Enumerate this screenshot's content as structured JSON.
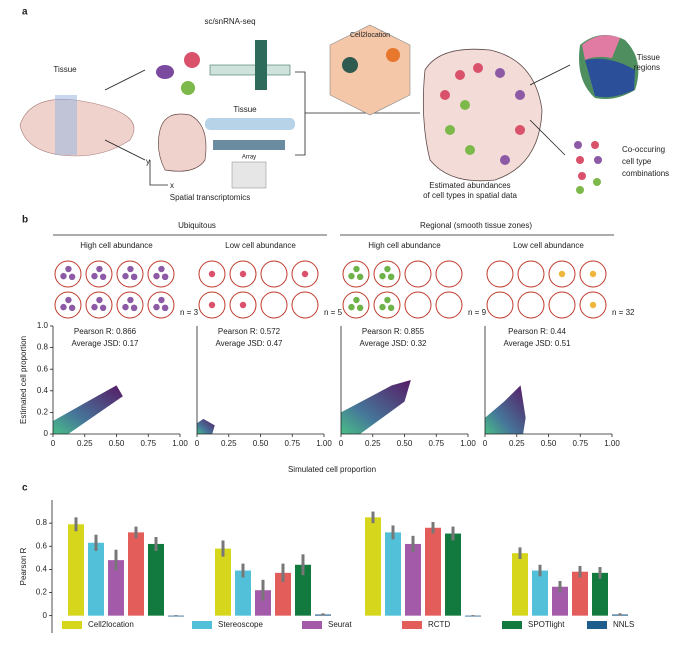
{
  "panel_a": {
    "label": "a",
    "tissue": "Tissue",
    "scrna": "sc/snRNA-seq",
    "model": "Cell2location",
    "tissue2": "Tissue",
    "array": "Array",
    "axis_y": "y",
    "axis_x": "x",
    "spatial": "Spatial transcriptomics",
    "estimated": [
      "Estimated abundances",
      "of cell types in spatial data"
    ],
    "regions": [
      "Tissue",
      "regions"
    ],
    "combos": [
      "Co-occuring",
      "cell type",
      "combinations"
    ]
  },
  "panel_b": {
    "label": "b",
    "groups": [
      "Ubiquitous",
      "Regional (smooth tissue zones)"
    ],
    "xlabel": "Simulated cell proportion",
    "ylabel": "Estimated cell proportion"
  },
  "panel_c": {
    "label": "c"
  },
  "chart_data": [
    {
      "type": "density",
      "title": "High cell abundance",
      "n": "n = 3",
      "annotations": [
        "Pearson R: 0.866",
        "Average JSD: 0.17"
      ],
      "xlim": [
        0,
        1
      ],
      "xticks": [
        0,
        0.25,
        {
          "value": 0.5,
          "label": "0.50"
        },
        0.75,
        {
          "value": 1,
          "label": "1.00"
        }
      ],
      "ylim": [
        0,
        1
      ],
      "yticks": [
        0,
        0.2,
        0.4,
        0.6,
        0.8,
        {
          "value": 1,
          "label": "1.0"
        }
      ]
    },
    {
      "type": "density",
      "title": "Low cell abundance",
      "n": "n = 5",
      "annotations": [
        "Pearson R: 0.572",
        "Average JSD: 0.47"
      ],
      "xlim": [
        0,
        1
      ],
      "xticks": [
        0,
        0.25,
        {
          "value": 0.5,
          "label": "0.50"
        },
        0.75,
        {
          "value": 1,
          "label": "1.00"
        }
      ],
      "ylim": [
        0,
        1
      ]
    },
    {
      "type": "density",
      "title": "High cell abundance",
      "n": "n = 9",
      "annotations": [
        "Pearson R: 0.855",
        "Average JSD: 0.32"
      ],
      "xlim": [
        0,
        1
      ],
      "xticks": [
        0,
        0.25,
        {
          "value": 0.5,
          "label": "0.50"
        },
        0.75,
        {
          "value": 1,
          "label": "1.00"
        }
      ],
      "ylim": [
        0,
        1
      ]
    },
    {
      "type": "density",
      "title": "Low cell abundance",
      "n": "n = 32",
      "annotations": [
        "Pearson R: 0.44",
        "Average JSD: 0.51"
      ],
      "xlim": [
        0,
        1
      ],
      "xticks": [
        0,
        0.25,
        {
          "value": 0.5,
          "label": "0.50"
        },
        0.75,
        {
          "value": 1,
          "label": "1.00"
        }
      ],
      "ylim": [
        0,
        1
      ]
    },
    {
      "type": "bar",
      "ylabel": "Pearson R",
      "categories": [
        null,
        null,
        null,
        null
      ],
      "ylim": [
        -0.15,
        1.0
      ],
      "yticks": [
        0,
        0.2,
        0.4,
        0.6,
        0.8
      ],
      "legend": "bottom",
      "series": [
        {
          "name": "Cell2location",
          "color": "#d6d61c",
          "values": [
            0.79,
            0.58,
            0.85,
            0.54
          ],
          "errors": [
            0.06,
            0.07,
            0.05,
            0.05
          ]
        },
        {
          "name": "Stereoscope",
          "color": "#52c0d8",
          "values": [
            0.63,
            0.39,
            0.72,
            0.39
          ],
          "errors": [
            0.07,
            0.06,
            0.06,
            0.05
          ]
        },
        {
          "name": "Seurat",
          "color": "#a35aa9",
          "values": [
            0.48,
            0.22,
            0.62,
            0.25
          ],
          "errors": [
            0.09,
            0.09,
            0.07,
            0.05
          ]
        },
        {
          "name": "RCTD",
          "color": "#e35d5b",
          "values": [
            0.72,
            0.37,
            0.76,
            0.38
          ],
          "errors": [
            0.05,
            0.08,
            0.05,
            0.05
          ]
        },
        {
          "name": "SPOTlight",
          "color": "#127a3f",
          "values": [
            0.62,
            0.44,
            0.71,
            0.37
          ],
          "errors": [
            0.06,
            0.09,
            0.06,
            0.05
          ]
        },
        {
          "name": "NNLS",
          "color": "#1f5e8c",
          "values": [
            0.0,
            0.01,
            0.0,
            0.01
          ],
          "errors": [
            0.005,
            0.01,
            0.005,
            0.01
          ]
        }
      ]
    }
  ]
}
